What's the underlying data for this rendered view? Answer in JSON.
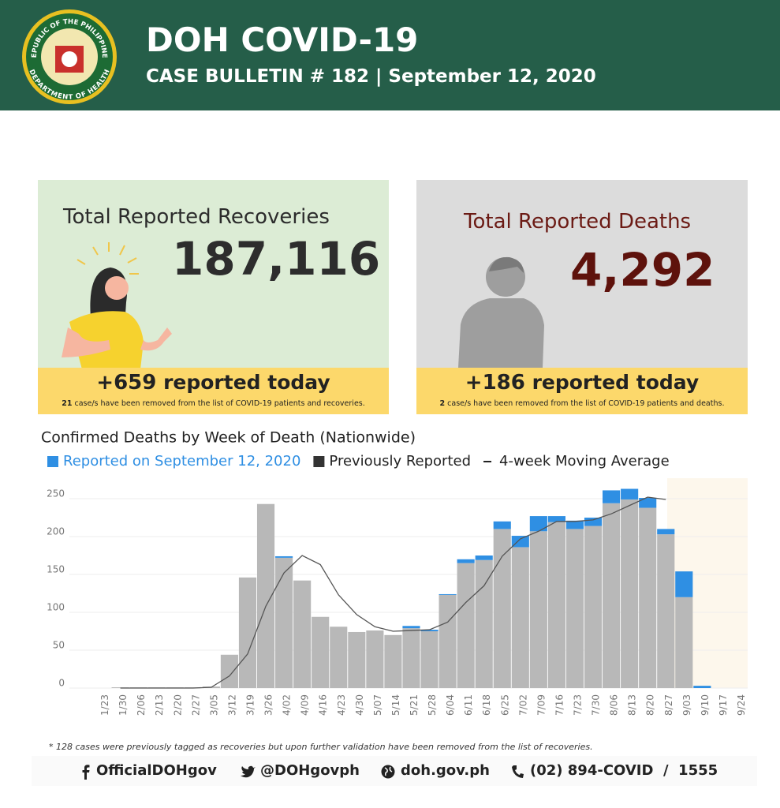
{
  "header": {
    "logo_top": "REPUBLIC OF THE PHILIPPINES",
    "logo_bottom": "DEPARTMENT OF HEALTH",
    "title": "DOH COVID-19",
    "subtitle": "CASE BULLETIN # 182 | September 12, 2020"
  },
  "recoveries": {
    "title": "Total Reported Recoveries",
    "total": "187,116",
    "today": "+659",
    "today_text": "reported today",
    "removed_count": "21",
    "removed_text": "case/s have been removed from the list of COVID-19 patients and recoveries."
  },
  "deaths": {
    "title": "Total Reported Deaths",
    "total": "4,292",
    "today": "+186",
    "today_text": "reported today",
    "removed_count": "2",
    "removed_text": "case/s have been removed from the list of COVID-19 patients and deaths."
  },
  "chart_data": {
    "type": "bar",
    "stacked": true,
    "title": "Confirmed Deaths by Week of Death (Nationwide)",
    "categories": [
      "1/23",
      "1/30",
      "2/06",
      "2/13",
      "2/20",
      "2/27",
      "3/05",
      "3/12",
      "3/19",
      "3/26",
      "4/02",
      "4/09",
      "4/16",
      "4/23",
      "4/30",
      "5/07",
      "5/14",
      "5/21",
      "5/28",
      "6/04",
      "6/11",
      "6/18",
      "6/25",
      "7/02",
      "7/09",
      "7/16",
      "7/23",
      "7/30",
      "8/06",
      "8/13",
      "8/20",
      "8/27",
      "9/03",
      "9/10",
      "9/17",
      "9/24"
    ],
    "series": [
      {
        "name": "Reported on September 12, 2020",
        "color": "#2f8fe3",
        "values": [
          0,
          0,
          0,
          0,
          0,
          0,
          0,
          0,
          0,
          0,
          2,
          0,
          0,
          0,
          0,
          0,
          0,
          3,
          2,
          1,
          5,
          6,
          10,
          15,
          20,
          8,
          11,
          11,
          17,
          14,
          13,
          7,
          34,
          3,
          0,
          0
        ]
      },
      {
        "name": "Previously Reported",
        "color": "#b8b8b8",
        "values": [
          0,
          1,
          1,
          1,
          1,
          1,
          2,
          44,
          146,
          243,
          172,
          142,
          94,
          81,
          74,
          76,
          70,
          79,
          75,
          123,
          165,
          169,
          210,
          186,
          207,
          219,
          210,
          214,
          244,
          249,
          238,
          203,
          120,
          0,
          0,
          0
        ]
      },
      {
        "name": "4-week Moving Average",
        "type": "line",
        "color": "#555555",
        "values": [
          null,
          0,
          0,
          0,
          0,
          0,
          1,
          16,
          45,
          108,
          152,
          175,
          163,
          123,
          97,
          81,
          75,
          76,
          77,
          87,
          113,
          135,
          174,
          197,
          207,
          220,
          220,
          222,
          230,
          241,
          252,
          249,
          null,
          null,
          null,
          null
        ]
      }
    ],
    "ylim": [
      0,
      275
    ],
    "yticks": [
      0,
      50,
      100,
      150,
      200,
      250
    ],
    "grid": true
  },
  "footnote": "* 128 cases were previously tagged as recoveries but upon further validation have been removed from the list of recoveries.",
  "footer": [
    "OfficialDOHgov",
    "@DOHgovph",
    "doh.gov.ph",
    "(02) 894-COVID  /  1555"
  ]
}
